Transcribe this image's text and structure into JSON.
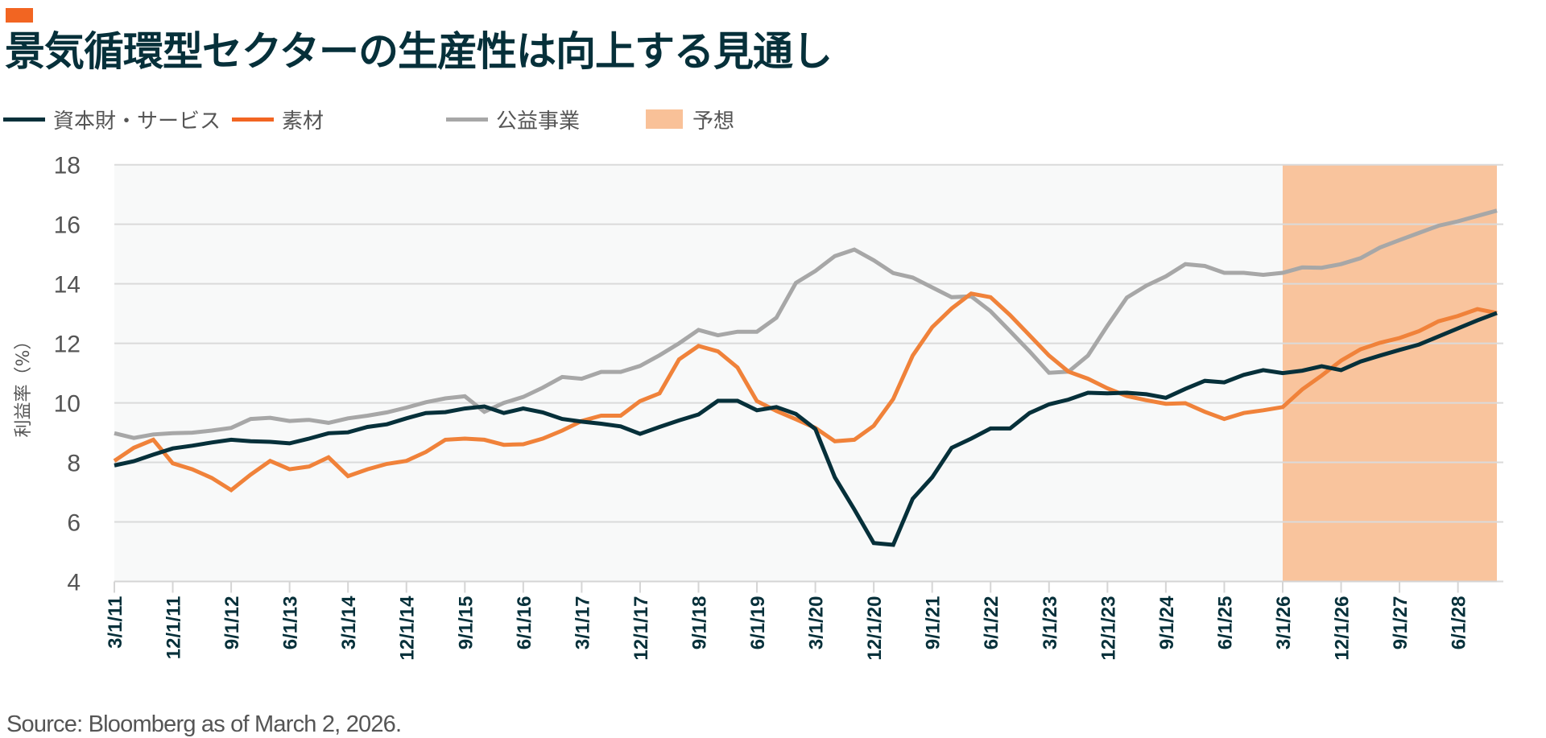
{
  "header": {
    "accent_color": "#F26522",
    "title": "景気循環型セクターの生産性は向上する見通し"
  },
  "legend": [
    {
      "type": "line",
      "label": "資本財・サービス",
      "color": "#06303A"
    },
    {
      "type": "line",
      "label": "素材",
      "color": "#F26522"
    },
    {
      "type": "line",
      "label": "公益事業",
      "color": "#A7A7A7"
    },
    {
      "type": "area",
      "label": "予想",
      "color": "#F9C198"
    }
  ],
  "source": "Source: Bloomberg as of March 2, 2026.",
  "chart_data": {
    "type": "line",
    "title": "景気循環型セクターの生産性は向上する見通し",
    "xlabel": "",
    "ylabel": "利益率（%）",
    "ylim": [
      4,
      18
    ],
    "yticks": [
      4,
      6,
      8,
      10,
      12,
      14,
      16,
      18
    ],
    "grid": true,
    "legend_position": "top-left",
    "x": [
      "3/1/11",
      "6/1/11",
      "9/1/11",
      "12/1/11",
      "3/1/12",
      "6/1/12",
      "9/1/12",
      "12/1/12",
      "3/1/13",
      "6/1/13",
      "9/1/13",
      "12/1/13",
      "3/1/14",
      "6/1/14",
      "9/1/14",
      "12/1/14",
      "3/1/15",
      "6/1/15",
      "9/1/15",
      "12/1/15",
      "3/1/16",
      "6/1/16",
      "9/1/16",
      "12/1/16",
      "3/1/17",
      "6/1/17",
      "9/1/17",
      "12/1/17",
      "3/1/18",
      "6/1/18",
      "9/1/18",
      "12/1/18",
      "3/1/19",
      "6/1/19",
      "9/1/19",
      "12/1/19",
      "3/1/20",
      "6/1/20",
      "9/1/20",
      "12/1/20",
      "3/1/21",
      "6/1/21",
      "9/1/21",
      "12/1/21",
      "3/1/22",
      "6/1/22",
      "9/1/22",
      "12/1/22",
      "3/1/23",
      "6/1/23",
      "9/1/23",
      "12/1/23",
      "3/1/24",
      "6/1/24",
      "9/1/24",
      "12/1/24",
      "3/1/25",
      "6/1/25",
      "9/1/25",
      "12/1/25",
      "3/1/26",
      "6/1/26",
      "9/1/26",
      "12/1/26",
      "3/1/27",
      "6/1/27",
      "9/1/27",
      "12/1/27",
      "3/1/28",
      "6/1/28",
      "9/1/28",
      "12/1/28"
    ],
    "x_tick_labels": [
      "3/1/11",
      "12/1/11",
      "9/1/12",
      "6/1/13",
      "3/1/14",
      "12/1/14",
      "9/1/15",
      "6/1/16",
      "3/1/17",
      "12/1/17",
      "9/1/18",
      "6/1/19",
      "3/1/20",
      "12/1/20",
      "9/1/21",
      "6/1/22",
      "3/1/23",
      "12/1/23",
      "9/1/24",
      "6/1/25",
      "3/1/26",
      "12/1/26",
      "9/1/27",
      "6/1/28"
    ],
    "forecast_region": {
      "label": "予想",
      "start": "3/1/26",
      "end": "12/1/28"
    },
    "series": [
      {
        "name": "資本財・サービス",
        "color": "#06303A",
        "values": [
          7.9,
          8.04,
          8.26,
          8.47,
          8.56,
          8.67,
          8.76,
          8.71,
          8.69,
          8.64,
          8.8,
          8.98,
          9.01,
          9.19,
          9.28,
          9.48,
          9.66,
          9.69,
          9.81,
          9.88,
          9.66,
          9.81,
          9.68,
          9.46,
          9.37,
          9.3,
          9.21,
          8.96,
          9.19,
          9.41,
          9.61,
          10.07,
          10.07,
          9.75,
          9.86,
          9.63,
          9.12,
          7.5,
          6.42,
          5.29,
          5.23,
          6.78,
          7.5,
          8.49,
          8.8,
          9.14,
          9.14,
          9.66,
          9.95,
          10.11,
          10.34,
          10.32,
          10.34,
          10.29,
          10.17,
          10.47,
          10.74,
          10.69,
          10.94,
          11.1,
          11.0,
          11.08,
          11.23,
          11.1,
          11.39,
          11.59,
          11.78,
          11.96,
          12.23,
          12.5,
          12.77,
          13.02
        ]
      },
      {
        "name": "素材",
        "color": "#F0823A",
        "values": [
          8.05,
          8.49,
          8.76,
          7.97,
          7.77,
          7.48,
          7.07,
          7.59,
          8.05,
          7.77,
          7.86,
          8.17,
          7.54,
          7.77,
          7.95,
          8.05,
          8.35,
          8.76,
          8.8,
          8.76,
          8.59,
          8.61,
          8.8,
          9.07,
          9.39,
          9.57,
          9.57,
          10.06,
          10.32,
          11.46,
          11.91,
          11.73,
          11.19,
          10.06,
          9.73,
          9.45,
          9.16,
          8.71,
          8.76,
          9.23,
          10.13,
          11.59,
          12.54,
          13.17,
          13.67,
          13.55,
          12.95,
          12.27,
          11.59,
          11.05,
          10.81,
          10.49,
          10.23,
          10.09,
          9.97,
          9.99,
          9.7,
          9.46,
          9.66,
          9.75,
          9.86,
          10.45,
          10.92,
          11.42,
          11.8,
          12.02,
          12.18,
          12.41,
          12.74,
          12.92,
          13.15,
          13.02
        ]
      },
      {
        "name": "公益事業",
        "color": "#A7A7A7",
        "values": [
          8.98,
          8.82,
          8.94,
          8.98,
          9.0,
          9.07,
          9.16,
          9.46,
          9.5,
          9.39,
          9.43,
          9.33,
          9.48,
          9.57,
          9.68,
          9.84,
          10.02,
          10.15,
          10.22,
          9.7,
          10.0,
          10.2,
          10.51,
          10.87,
          10.81,
          11.04,
          11.04,
          11.24,
          11.6,
          12.0,
          12.45,
          12.27,
          12.39,
          12.39,
          12.86,
          14.03,
          14.43,
          14.93,
          15.15,
          14.79,
          14.36,
          14.21,
          13.88,
          13.55,
          13.58,
          13.08,
          12.41,
          11.73,
          11.01,
          11.05,
          11.59,
          12.59,
          13.54,
          13.94,
          14.25,
          14.66,
          14.6,
          14.37,
          14.37,
          14.3,
          14.37,
          14.55,
          14.54,
          14.66,
          14.86,
          15.22,
          15.47,
          15.71,
          15.95,
          16.1,
          16.28,
          16.46
        ]
      }
    ]
  }
}
